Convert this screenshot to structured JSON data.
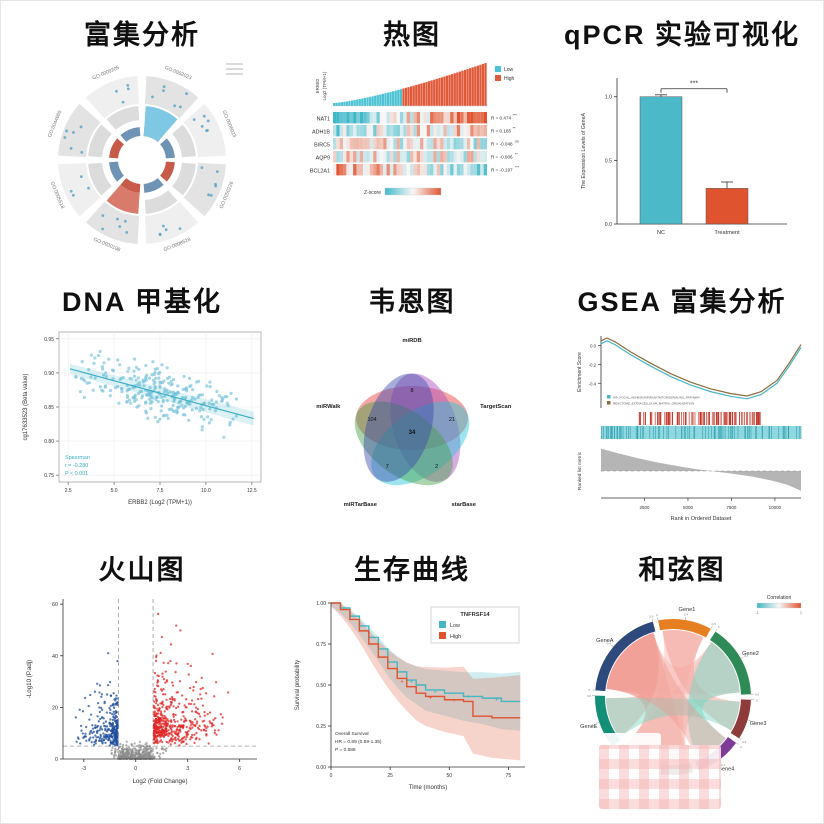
{
  "page": {
    "background": "#ffffff"
  },
  "chart_data": [
    {
      "type": "circular-enrichment",
      "title_cn": "富集分析",
      "go_terms": [
        "GO:0062023",
        "GO:0006023",
        "GO:0050226",
        "GO:0008528",
        "GO:0030198",
        "GO:0005518",
        "GO:0044665",
        "GO:0009205"
      ],
      "dot_color": "#58a6c8",
      "inner_colors": [
        "#c85a4a",
        "#6f93b5",
        "#c85a4a",
        "#6f93b5",
        "#c85a4a",
        "#6f93b5",
        "#c85a4a",
        "#6f93b5"
      ],
      "highlight_segment": 0,
      "highlight_color": "#7ec8e3",
      "secondary_color": "#d97b6c"
    },
    {
      "type": "heatmap-bar",
      "title_cn": "热图",
      "ylabel_top_1": "ERBB2",
      "ylabel_top_2": "Log2 (TPM+1)",
      "legend": {
        "low": "Low",
        "high": "High",
        "low_color": "#4cc3d4",
        "high_color": "#e05a3a"
      },
      "scale": {
        "low": "#3fb8c9",
        "mid": "#f7f7f7",
        "high": "#e0532f"
      },
      "colorbar_label": "Z-score",
      "n_cols": 60,
      "seed": 9,
      "rows": [
        {
          "gene": "NAT1",
          "r_label": "R = 0.474",
          "r_value": 0.474,
          "sig": "***"
        },
        {
          "gene": "ADH1B",
          "r_label": "R = 0.185",
          "r_value": 0.185,
          "sig": "**"
        },
        {
          "gene": "BIRC5",
          "r_label": "R = -0.048",
          "r_value": -0.048,
          "sig": "ns"
        },
        {
          "gene": "AQP9",
          "r_label": "R = -0.006",
          "r_value": -0.006,
          "sig": "**"
        },
        {
          "gene": "BCL2A1",
          "r_label": "R = -0.197",
          "r_value": -0.197,
          "sig": "***"
        }
      ]
    },
    {
      "type": "bar",
      "title_cn": "qPCR 实验可视化",
      "categories": [
        "NC",
        "Treatment"
      ],
      "values": [
        1.0,
        0.28
      ],
      "errors": [
        0.015,
        0.05
      ],
      "colors": [
        "#4cb9c9",
        "#e0532f"
      ],
      "ylabel": "The Expression Levels of GeneA",
      "ylim": [
        0,
        1.1
      ],
      "yticks": [
        "0.0",
        "0.5",
        "1.0"
      ],
      "sig": "***"
    },
    {
      "type": "scatter",
      "title_cn": "DNA 甲基化",
      "xlabel": "ERBB2 (Log2 (TPM+1))",
      "ylabel": "cg17633523 (Beta value)",
      "xlim": [
        2,
        13
      ],
      "ylim": [
        0.74,
        0.96
      ],
      "xticks": [
        "2.5",
        "5.0",
        "7.5",
        "10.0",
        "12.5"
      ],
      "yticks": [
        "0.75",
        "0.80",
        "0.85",
        "0.90",
        "0.95"
      ],
      "annotation": [
        "Spearman",
        "r = -0.280",
        "P < 0.001"
      ],
      "n_points": 280,
      "seed": 21,
      "trend": {
        "x0": 2.6,
        "y0": 0.906,
        "x1": 12.6,
        "y1": 0.833
      },
      "point_color": "#7cc4dd",
      "line_color": "#3aafc4"
    },
    {
      "type": "venn5",
      "title_cn": "韦恩图",
      "center_count": "34",
      "sets": [
        {
          "label": "miRDB",
          "count": "8",
          "color": "#e53935"
        },
        {
          "label": "TargetScan",
          "count": "21",
          "color": "#ab47bc"
        },
        {
          "label": "starBase",
          "count": "2",
          "color": "#26c6da"
        },
        {
          "label": "miRTarBase",
          "count": "7",
          "color": "#43a047"
        },
        {
          "label": "miRWalk",
          "count": "104",
          "color": "#3949ab"
        }
      ]
    },
    {
      "type": "gsea",
      "title_cn": "GSEA 富集分析",
      "ylabel_top": "Enrichment Score",
      "ylabel_bottom": "Ranked list metric",
      "xlabel": "Rank in Ordered Dataset",
      "xticks": [
        "2500",
        "5000",
        "7500",
        "10000"
      ],
      "x_max": 11500,
      "es_ticks": [
        "0.0",
        "-0.2",
        "-0.4"
      ],
      "es_top": 0.08,
      "es_min": -0.62,
      "series": [
        {
          "name": "WP_FOCAL_ADHESIONPI3KAKTMTORSIGNALING_PATHWAY",
          "color": "#45b6c2"
        },
        {
          "name": "REACTOME_EXTRACELLULAR_MATRIX_ORGANIZATION",
          "color": "#8a6d3b"
        }
      ],
      "es_curve": [
        [
          0,
          0.02
        ],
        [
          0.03,
          0.05
        ],
        [
          0.07,
          0.01
        ],
        [
          0.15,
          -0.1
        ],
        [
          0.25,
          -0.22
        ],
        [
          0.35,
          -0.33
        ],
        [
          0.45,
          -0.42
        ],
        [
          0.55,
          -0.49
        ],
        [
          0.65,
          -0.54
        ],
        [
          0.73,
          -0.565
        ],
        [
          0.8,
          -0.52
        ],
        [
          0.88,
          -0.4
        ],
        [
          0.94,
          -0.22
        ],
        [
          1,
          -0.02
        ]
      ],
      "rank_curve": [
        [
          0,
          0.62
        ],
        [
          0.08,
          0.5
        ],
        [
          0.18,
          0.36
        ],
        [
          0.28,
          0.24
        ],
        [
          0.38,
          0.14
        ],
        [
          0.48,
          0.05
        ],
        [
          0.55,
          0
        ],
        [
          0.65,
          -0.07
        ],
        [
          0.75,
          -0.15
        ],
        [
          0.85,
          -0.26
        ],
        [
          0.93,
          -0.38
        ],
        [
          1,
          -0.55
        ]
      ],
      "rank_max": 0.75,
      "rank_min": -0.75,
      "hit_color": "#c0392b",
      "band_color": "#8fd8e0",
      "band_line_color": "#2f9fae"
    },
    {
      "type": "volcano",
      "title_cn": "火山图",
      "xlabel": "Log2 (Fold Change)",
      "ylabel": "-Log10 (P.adj)",
      "xlim": [
        -4.2,
        7
      ],
      "ylim": [
        0,
        62
      ],
      "xticks": [
        "-3",
        "0",
        "3",
        "6"
      ],
      "yticks": [
        "0",
        "20",
        "40",
        "60"
      ],
      "vlines": [
        -1,
        1
      ],
      "hline": 5,
      "colors": {
        "up": "#e02424",
        "down": "#1f4e9c",
        "ns": "#8c8c8c"
      },
      "n_up": 480,
      "n_down": 280,
      "n_ns": 320,
      "seed": 7
    },
    {
      "type": "km",
      "title_cn": "生存曲线",
      "title": "TNFRSF14",
      "legend": [
        {
          "label": "Low",
          "color": "#45b6c2"
        },
        {
          "label": "High",
          "color": "#e0532f"
        }
      ],
      "ylabel": "Survival probability",
      "xlabel": "Time (months)",
      "x_max": 82,
      "xticks": [
        "0",
        "25",
        "50",
        "75"
      ],
      "yticks": [
        "0.00",
        "0.25",
        "0.50",
        "0.75",
        "1.00"
      ],
      "annotation": [
        "Overall Survival",
        "HR = 0.89 (0.59-1.35)",
        "P = 0.588"
      ],
      "curves": {
        "low": [
          [
            0,
            1
          ],
          [
            4,
            0.97
          ],
          [
            8,
            0.92
          ],
          [
            12,
            0.86
          ],
          [
            16,
            0.79
          ],
          [
            20,
            0.72
          ],
          [
            24,
            0.64
          ],
          [
            28,
            0.58
          ],
          [
            32,
            0.53
          ],
          [
            36,
            0.5
          ],
          [
            40,
            0.47
          ],
          [
            48,
            0.45
          ],
          [
            56,
            0.43
          ],
          [
            64,
            0.42
          ],
          [
            72,
            0.4
          ],
          [
            80,
            0.4
          ]
        ],
        "high": [
          [
            0,
            1
          ],
          [
            4,
            0.96
          ],
          [
            8,
            0.9
          ],
          [
            12,
            0.83
          ],
          [
            16,
            0.75
          ],
          [
            20,
            0.67
          ],
          [
            24,
            0.6
          ],
          [
            28,
            0.54
          ],
          [
            32,
            0.49
          ],
          [
            36,
            0.45
          ],
          [
            40,
            0.43
          ],
          [
            48,
            0.41
          ],
          [
            56,
            0.4
          ],
          [
            60,
            0.31
          ],
          [
            68,
            0.3
          ],
          [
            80,
            0.3
          ]
        ]
      },
      "censors": {
        "low": [
          [
            34,
            0.52
          ],
          [
            44,
            0.46
          ],
          [
            58,
            0.43
          ],
          [
            70,
            0.41
          ]
        ],
        "high": [
          [
            30,
            0.52
          ],
          [
            42,
            0.42
          ],
          [
            52,
            0.405
          ]
        ]
      }
    },
    {
      "type": "chord",
      "title_cn": "和弦图",
      "legend_title": "Correlation",
      "legend_low": "#45b6c2",
      "legend_high": "#e0532f",
      "legend_ticks": [
        "-1",
        "1"
      ],
      "start_angle": -85,
      "gap": 4,
      "tick_labels": [
        "0",
        "0.4",
        "0.8"
      ],
      "arcs": [
        {
          "label": "GeneA",
          "span": 70,
          "color": "#2e4a7d"
        },
        {
          "label": "Gene1",
          "span": 40,
          "color": "#e67e22"
        },
        {
          "label": "Gene2",
          "span": 55,
          "color": "#2e8b57"
        },
        {
          "label": "Gene3",
          "span": 30,
          "color": "#8e3b3b"
        },
        {
          "label": "Gene4",
          "span": 35,
          "color": "#7d3c98"
        },
        {
          "label": "GeneD",
          "span": 62,
          "color": "#4d4d4d"
        },
        {
          "label": "GeneE",
          "span": 40,
          "color": "#148f77"
        }
      ],
      "ribbons": [
        {
          "from": 0,
          "to": 5,
          "color": "#f1948a",
          "opacity": 0.55
        },
        {
          "from": 0,
          "to": 2,
          "color": "#f5b7b1",
          "opacity": 0.5
        },
        {
          "from": 0,
          "to": 6,
          "color": "#f1948a",
          "opacity": 0.45
        },
        {
          "from": 1,
          "to": 5,
          "color": "#f5b7b1",
          "opacity": 0.5
        },
        {
          "from": 1,
          "to": 3,
          "color": "#f1948a",
          "opacity": 0.45
        },
        {
          "from": 2,
          "to": 5,
          "color": "#f5b7b1",
          "opacity": 0.45
        },
        {
          "from": 2,
          "to": 4,
          "color": "#76d7c4",
          "opacity": 0.5
        },
        {
          "from": 6,
          "to": 3,
          "color": "#76d7c4",
          "opacity": 0.45
        },
        {
          "from": 0,
          "to": 4,
          "color": "#f1948a",
          "opacity": 0.4
        }
      ]
    }
  ]
}
